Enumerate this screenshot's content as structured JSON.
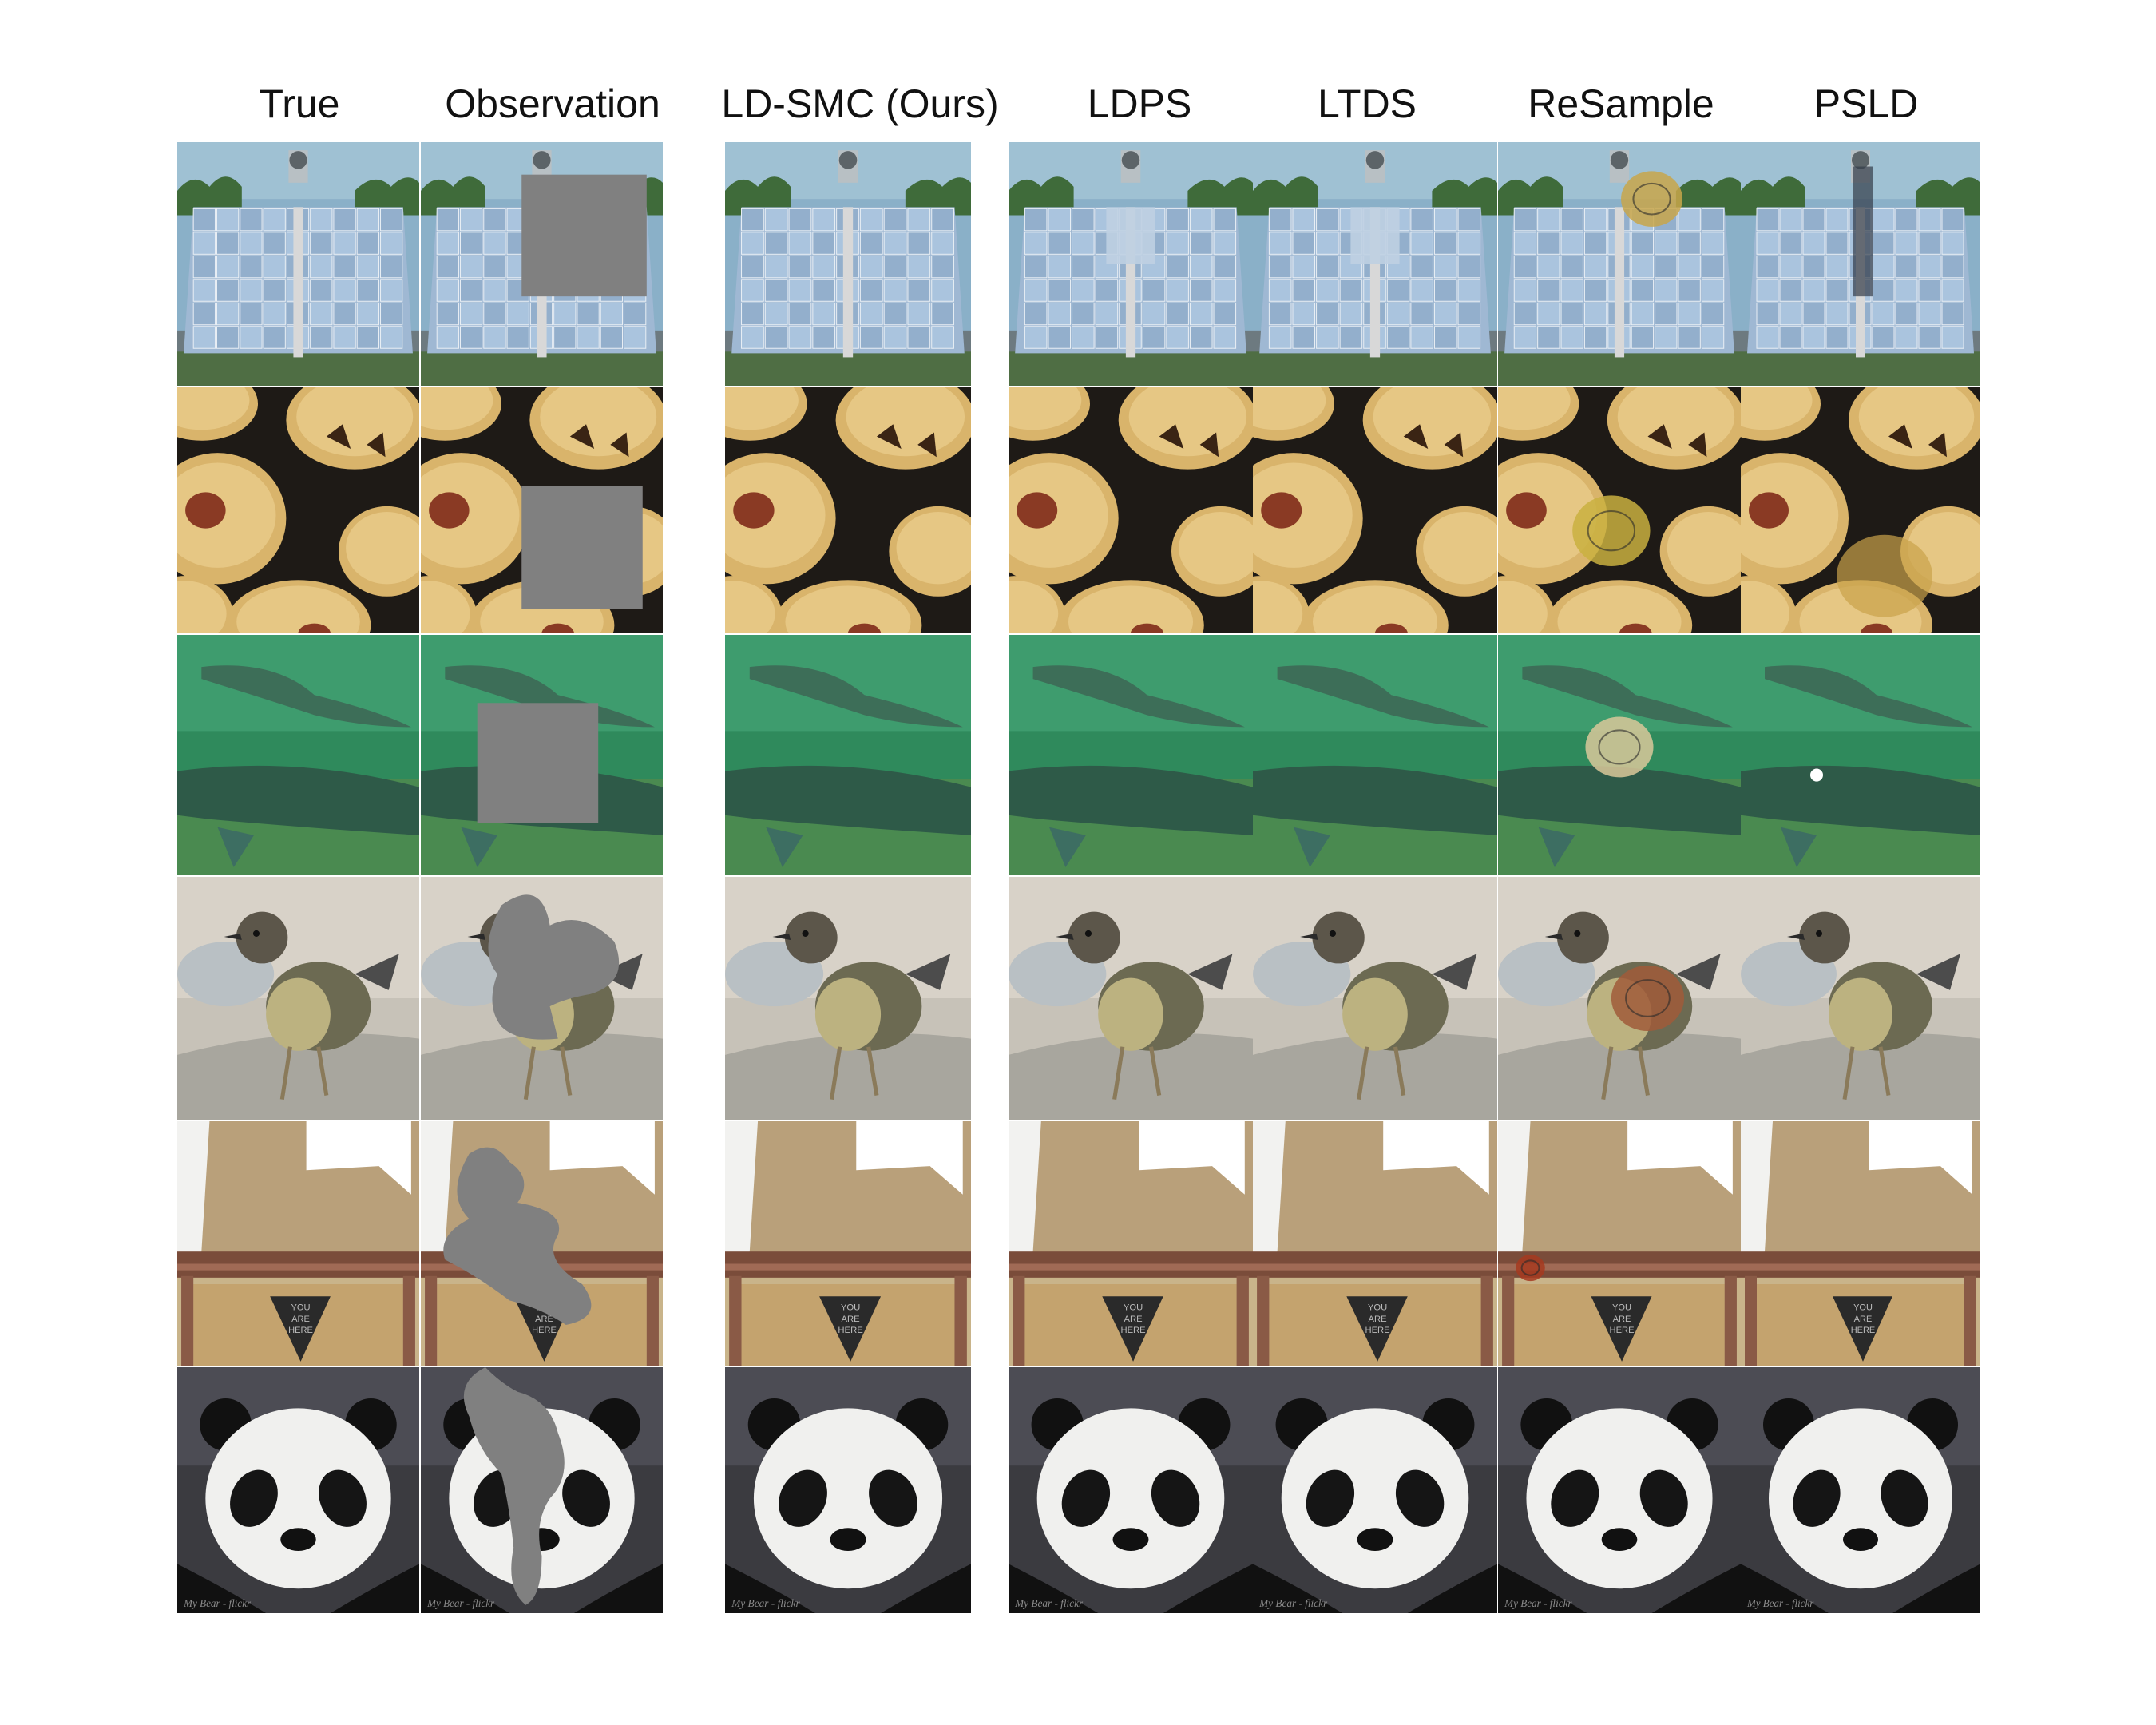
{
  "figure": {
    "columns": [
      {
        "label": "True",
        "kind": "true"
      },
      {
        "label": "Observation",
        "kind": "observation"
      },
      {
        "label": "LD-SMC (Ours)",
        "kind": "ldsmc"
      },
      {
        "label": "LDPS",
        "kind": "ldps"
      },
      {
        "label": "LTDS",
        "kind": "ltds"
      },
      {
        "label": "ReSample",
        "kind": "resample"
      },
      {
        "label": "PSLD",
        "kind": "psld"
      }
    ],
    "rows": [
      {
        "subject": "solar-mirror-array",
        "mask": "box",
        "watermark": ""
      },
      {
        "subject": "pies",
        "mask": "box",
        "watermark": ""
      },
      {
        "subject": "underwater-sturgeon",
        "mask": "box",
        "watermark": ""
      },
      {
        "subject": "bird-on-rock",
        "mask": "freeform",
        "watermark": ""
      },
      {
        "subject": "hallway-doormat",
        "mask": "freeform",
        "watermark": ""
      },
      {
        "subject": "panda",
        "mask": "freeform",
        "watermark": "My Bear - flickr"
      }
    ],
    "doormat_text": [
      "YOU",
      "ARE",
      "HERE"
    ],
    "colors": {
      "mask_gray": "#808080",
      "background": "#ffffff"
    }
  }
}
